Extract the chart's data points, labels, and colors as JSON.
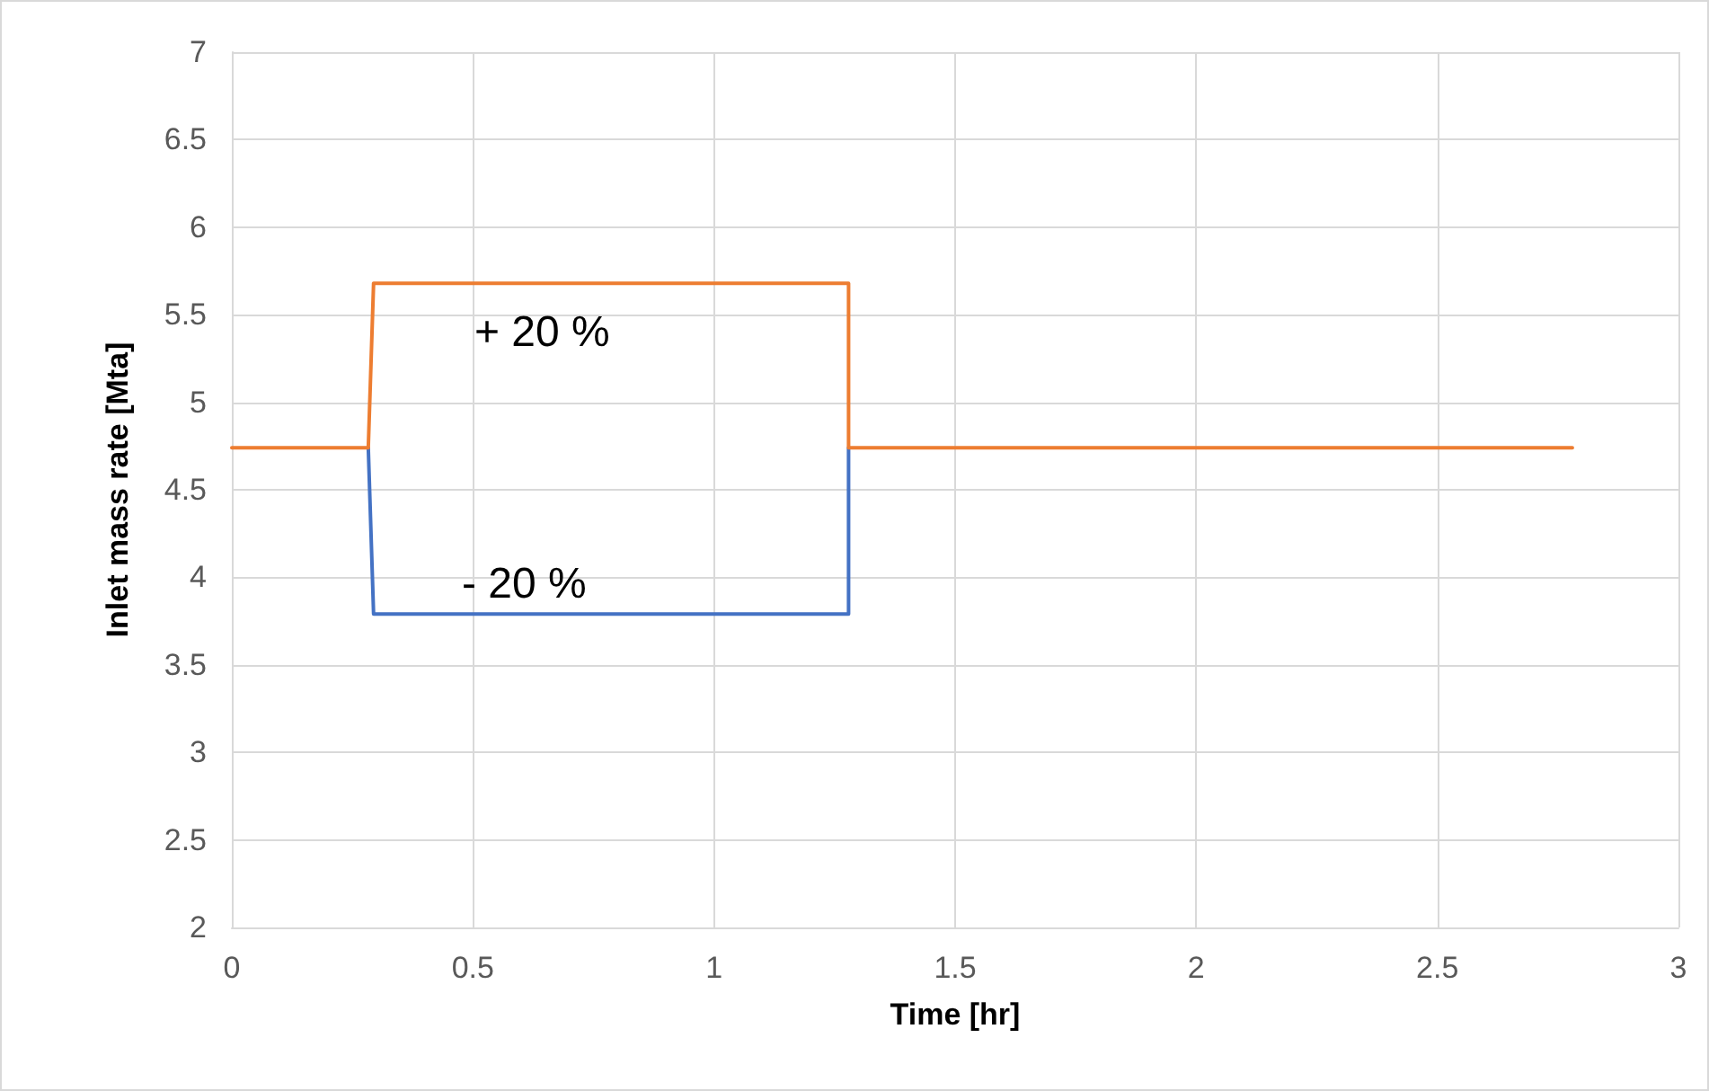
{
  "chart_data": {
    "type": "line",
    "xlabel": "Time [hr]",
    "ylabel": "Inlet mass rate [Mta]",
    "series": [
      {
        "color": "#4472c4",
        "x": [
          0.283,
          0.294,
          1.279,
          1.279
        ],
        "values": [
          4.74,
          3.79,
          3.79,
          4.74
        ]
      },
      {
        "color": "#ed7d31",
        "x": [
          0,
          0.283,
          0.294,
          1.279,
          1.279,
          2.78
        ],
        "values": [
          4.74,
          4.74,
          5.68,
          5.68,
          4.74,
          4.74
        ]
      }
    ],
    "annotations": [
      "+ 20 %",
      "- 20 %"
    ],
    "xlim": [
      0,
      3
    ],
    "xticks": [
      0,
      0.5,
      1,
      1.5,
      2,
      2.5,
      3
    ],
    "ylim": [
      2,
      7
    ],
    "yticks": [
      2,
      2.5,
      3,
      3.5,
      4,
      4.5,
      5,
      5.5,
      6,
      6.5,
      7
    ],
    "grid": true,
    "marker": "none",
    "line_style": "solid"
  }
}
